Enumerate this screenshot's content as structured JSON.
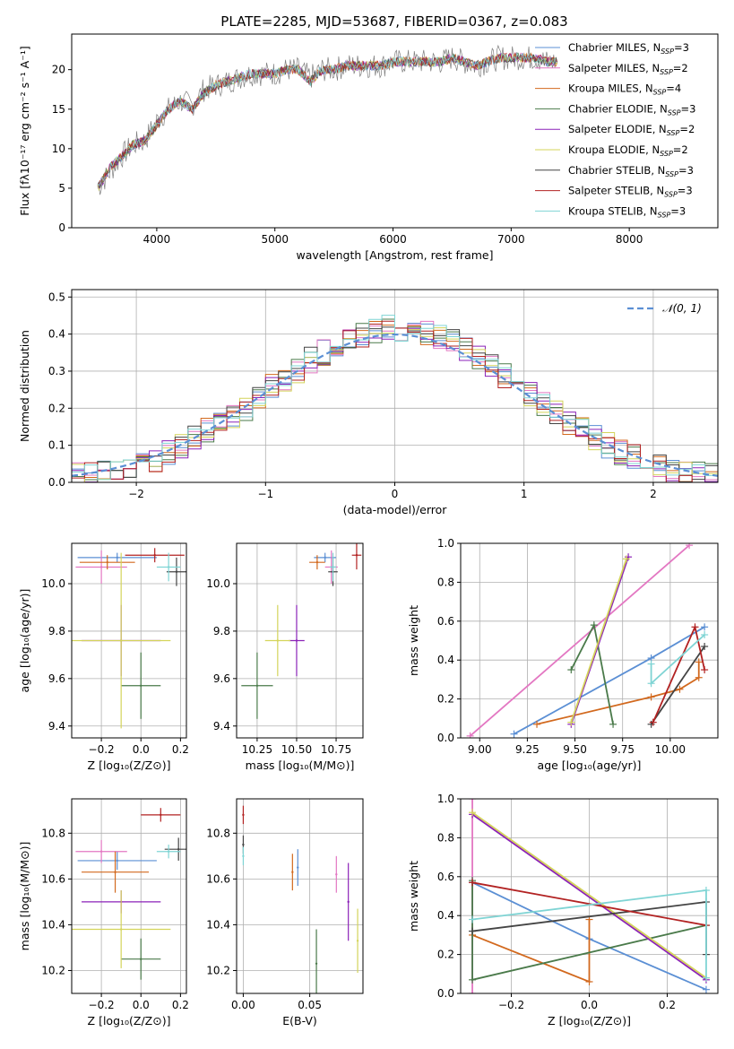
{
  "figure_title": "PLATE=2285, MJD=53687, FIBERID=0367, z=0.083",
  "colors": {
    "chabrier_miles": "#5b8fd4",
    "salpeter_miles": "#e377c2",
    "kroupa_miles": "#d2691e",
    "chabrier_elodie": "#4a7a4a",
    "salpeter_elodie": "#8b22b8",
    "kroupa_elodie": "#d4d45a",
    "chabrier_stelib": "#444444",
    "salpeter_stelib": "#b22222",
    "kroupa_stelib": "#7fd4d4",
    "data": "#7f7f7f",
    "normal": "#5b8fd4"
  },
  "chart_data": [
    {
      "type": "line",
      "id": "spectrum",
      "xlabel": "wavelength [Angstrom, rest frame]",
      "ylabel": "Flux [fλ10⁻¹⁷ erg cm⁻² s⁻¹ A⁻¹]",
      "xlim": [
        3280,
        8750
      ],
      "ylim": [
        0,
        24.5
      ],
      "xticks": [
        4000,
        5000,
        6000,
        7000,
        8000
      ],
      "yticks": [
        0,
        5,
        10,
        15,
        20
      ],
      "grid": false,
      "legend_position": "right",
      "x": [
        3500,
        3600,
        3700,
        3800,
        3900,
        4000,
        4100,
        4200,
        4300,
        4400,
        4500,
        4600,
        4700,
        4800,
        4900,
        5000,
        5100,
        5200,
        5300,
        5400,
        5500,
        5600,
        5700,
        5800,
        5900,
        6000,
        6100,
        6200,
        6300,
        6400,
        6500,
        6600,
        6700,
        6800,
        6900,
        7000,
        7100,
        7200,
        7300,
        7400
      ],
      "data_flux": [
        5,
        7,
        9,
        10.5,
        11,
        13.5,
        15,
        16,
        15.5,
        17.5,
        18,
        18.5,
        19,
        19.5,
        19.5,
        19.5,
        20,
        20,
        19,
        20,
        20,
        20.5,
        20.5,
        20.5,
        20.5,
        21,
        21,
        21,
        21,
        21,
        21.5,
        21,
        20.5,
        21,
        21.5,
        21.5,
        21.5,
        21.5,
        21,
        21
      ],
      "model_flux": [
        5,
        7.5,
        9,
        10.5,
        11,
        13,
        15,
        16,
        15,
        17,
        18,
        18.5,
        19,
        19.5,
        19.5,
        19.5,
        20,
        20,
        18.5,
        20,
        20,
        20.5,
        20.5,
        20.5,
        20.5,
        21,
        21,
        21,
        21,
        21,
        21.5,
        21,
        20.5,
        21,
        21.5,
        21.5,
        21.5,
        21.5,
        21,
        21
      ],
      "series": [
        {
          "name": "Chabrier MILES, N_SSP=3",
          "label_main": "Chabrier MILES, N",
          "label_sub": "SSP",
          "label_tail": "=3",
          "color_key": "chabrier_miles"
        },
        {
          "name": "Salpeter MILES, N_SSP=2",
          "label_main": "Salpeter MILES, N",
          "label_sub": "SSP",
          "label_tail": "=2",
          "color_key": "salpeter_miles"
        },
        {
          "name": "Kroupa MILES, N_SSP=4",
          "label_main": "Kroupa MILES, N",
          "label_sub": "SSP",
          "label_tail": "=4",
          "color_key": "kroupa_miles"
        },
        {
          "name": "Chabrier ELODIE, N_SSP=3",
          "label_main": "Chabrier ELODIE, N",
          "label_sub": "SSP",
          "label_tail": "=3",
          "color_key": "chabrier_elodie"
        },
        {
          "name": "Salpeter ELODIE, N_SSP=2",
          "label_main": "Salpeter ELODIE, N",
          "label_sub": "SSP",
          "label_tail": "=2",
          "color_key": "salpeter_elodie"
        },
        {
          "name": "Kroupa ELODIE, N_SSP=2",
          "label_main": "Kroupa ELODIE, N",
          "label_sub": "SSP",
          "label_tail": "=2",
          "color_key": "kroupa_elodie"
        },
        {
          "name": "Chabrier STELIB, N_SSP=3",
          "label_main": "Chabrier STELIB, N",
          "label_sub": "SSP",
          "label_tail": "=3",
          "color_key": "chabrier_stelib"
        },
        {
          "name": "Salpeter STELIB, N_SSP=3",
          "label_main": "Salpeter STELIB, N",
          "label_sub": "SSP",
          "label_tail": "=3",
          "color_key": "salpeter_stelib"
        },
        {
          "name": "Kroupa STELIB, N_SSP=3",
          "label_main": "Kroupa STELIB, N",
          "label_sub": "SSP",
          "label_tail": "=3",
          "color_key": "kroupa_stelib"
        }
      ]
    },
    {
      "type": "line",
      "id": "residuals",
      "xlabel": "(data-model)/error",
      "ylabel": "Normed distribution",
      "xlim": [
        -2.5,
        2.5
      ],
      "ylim": [
        0,
        0.52
      ],
      "xticks": [
        -2,
        -1,
        0,
        1,
        2
      ],
      "xticklabels": [
        "−2",
        "−1",
        "0",
        "1",
        "2"
      ],
      "yticks": [
        0.0,
        0.1,
        0.2,
        0.3,
        0.4,
        0.5
      ],
      "yticklabels": [
        "0.0",
        "0.1",
        "0.2",
        "0.3",
        "0.4",
        "0.5"
      ],
      "grid": true,
      "legend_position": "top-right",
      "legend_label": "𝒩(0, 1)",
      "bins": [
        -2.5,
        -2.4,
        -2.3,
        -2.2,
        -2.1,
        -2.0,
        -1.9,
        -1.8,
        -1.7,
        -1.6,
        -1.5,
        -1.4,
        -1.3,
        -1.2,
        -1.1,
        -1.0,
        -0.9,
        -0.8,
        -0.7,
        -0.6,
        -0.5,
        -0.4,
        -0.3,
        -0.2,
        -0.1,
        0.0,
        0.1,
        0.2,
        0.3,
        0.4,
        0.5,
        0.6,
        0.7,
        0.8,
        0.9,
        1.0,
        1.1,
        1.2,
        1.3,
        1.4,
        1.5,
        1.6,
        1.7,
        1.8,
        1.9,
        2.0,
        2.1,
        2.2,
        2.3,
        2.4
      ],
      "histogram": [
        0.02,
        0.02,
        0.03,
        0.03,
        0.04,
        0.05,
        0.06,
        0.08,
        0.1,
        0.12,
        0.14,
        0.16,
        0.18,
        0.2,
        0.23,
        0.26,
        0.28,
        0.3,
        0.33,
        0.35,
        0.37,
        0.39,
        0.4,
        0.41,
        0.42,
        0.41,
        0.4,
        0.4,
        0.39,
        0.38,
        0.36,
        0.34,
        0.31,
        0.29,
        0.26,
        0.24,
        0.21,
        0.19,
        0.16,
        0.14,
        0.12,
        0.1,
        0.08,
        0.07,
        0.05,
        0.04,
        0.03,
        0.03,
        0.02,
        0.02
      ],
      "gaussian": {
        "mean": 0,
        "sigma": 1
      }
    },
    {
      "type": "scatter",
      "id": "age_vs_Z",
      "xlabel": "Z [log₁₀(Z/Z⊙)]",
      "ylabel": "age  [log₁₀(age/yr)]",
      "xlim": [
        -0.35,
        0.23
      ],
      "ylim": [
        9.35,
        10.17
      ],
      "xticks": [
        -0.2,
        0.0,
        0.2
      ],
      "xticklabels": [
        "−0.2",
        "0.0",
        "0.2"
      ],
      "yticks": [
        9.4,
        9.6,
        9.8,
        10.0
      ],
      "yticklabels": [
        "9.4",
        "9.6",
        "9.8",
        "10.0"
      ],
      "grid": true,
      "points": [
        {
          "color_key": "chabrier_miles",
          "x": -0.12,
          "y": 10.11,
          "xerr": 0.2,
          "yerr": 0.02
        },
        {
          "color_key": "salpeter_miles",
          "x": -0.2,
          "y": 10.07,
          "xerr": 0.13,
          "yerr": 0.07
        },
        {
          "color_key": "kroupa_miles",
          "x": -0.17,
          "y": 10.09,
          "xerr": 0.14,
          "yerr": 0.03
        },
        {
          "color_key": "chabrier_elodie",
          "x": 0.0,
          "y": 9.57,
          "xerr": 0.1,
          "yerr": 0.14
        },
        {
          "color_key": "salpeter_elodie",
          "x": -0.1,
          "y": 9.76,
          "xerr": 0.2,
          "yerr": 0.15
        },
        {
          "color_key": "kroupa_elodie",
          "x": -0.1,
          "y": 9.76,
          "xerr": 0.25,
          "yerr": 0.37
        },
        {
          "color_key": "chabrier_stelib",
          "x": 0.18,
          "y": 10.05,
          "xerr": 0.05,
          "yerr": 0.06
        },
        {
          "color_key": "salpeter_stelib",
          "x": 0.07,
          "y": 10.12,
          "xerr": 0.15,
          "yerr": 0.03
        },
        {
          "color_key": "kroupa_stelib",
          "x": 0.14,
          "y": 10.07,
          "xerr": 0.06,
          "yerr": 0.06
        }
      ]
    },
    {
      "type": "scatter",
      "id": "age_vs_mass",
      "xlabel": "mass [log₁₀(M/M⊙)]",
      "ylabel": "",
      "xlim": [
        10.12,
        10.92
      ],
      "ylim": [
        9.35,
        10.17
      ],
      "xticks": [
        10.25,
        10.5,
        10.75
      ],
      "xticklabels": [
        "10.25",
        "10.50",
        "10.75"
      ],
      "yticks": [
        9.4,
        9.6,
        9.8,
        10.0
      ],
      "yticklabels": [
        "9.4",
        "9.6",
        "9.8",
        "10.0"
      ],
      "grid": true,
      "points": [
        {
          "color_key": "chabrier_miles",
          "x": 10.68,
          "y": 10.11,
          "xerr": 0.07,
          "yerr": 0.02
        },
        {
          "color_key": "salpeter_miles",
          "x": 10.72,
          "y": 10.07,
          "xerr": 0.04,
          "yerr": 0.07
        },
        {
          "color_key": "kroupa_miles",
          "x": 10.63,
          "y": 10.09,
          "xerr": 0.05,
          "yerr": 0.03
        },
        {
          "color_key": "chabrier_elodie",
          "x": 10.25,
          "y": 9.57,
          "xerr": 0.1,
          "yerr": 0.14
        },
        {
          "color_key": "salpeter_elodie",
          "x": 10.5,
          "y": 9.76,
          "xerr": 0.05,
          "yerr": 0.15
        },
        {
          "color_key": "kroupa_elodie",
          "x": 10.38,
          "y": 9.76,
          "xerr": 0.08,
          "yerr": 0.15
        },
        {
          "color_key": "chabrier_stelib",
          "x": 10.73,
          "y": 10.05,
          "xerr": 0.03,
          "yerr": 0.06
        },
        {
          "color_key": "salpeter_stelib",
          "x": 10.88,
          "y": 10.12,
          "xerr": 0.03,
          "yerr": 0.06
        },
        {
          "color_key": "kroupa_stelib",
          "x": 10.73,
          "y": 10.07,
          "xerr": 0.02,
          "yerr": 0.06
        }
      ]
    },
    {
      "type": "line",
      "id": "massweight_vs_age",
      "xlabel": "age  [log₁₀(age/yr)]",
      "ylabel": "mass weight",
      "xlim": [
        8.9,
        10.25
      ],
      "ylim": [
        0,
        1.0
      ],
      "xticks": [
        9.0,
        9.25,
        9.5,
        9.75,
        10.0
      ],
      "xticklabels": [
        "9.00",
        "9.25",
        "9.50",
        "9.75",
        "10.00"
      ],
      "yticks": [
        0.0,
        0.2,
        0.4,
        0.6,
        0.8,
        1.0
      ],
      "yticklabels": [
        "0.0",
        "0.2",
        "0.4",
        "0.6",
        "0.8",
        "1.0"
      ],
      "grid": true,
      "series": [
        {
          "color_key": "chabrier_miles",
          "x": [
            9.18,
            9.9,
            10.18
          ],
          "y": [
            0.02,
            0.41,
            0.57
          ]
        },
        {
          "color_key": "salpeter_miles",
          "x": [
            8.95,
            10.1
          ],
          "y": [
            0.01,
            0.99
          ]
        },
        {
          "color_key": "kroupa_miles",
          "x": [
            9.3,
            9.9,
            10.05,
            10.15,
            10.15
          ],
          "y": [
            0.07,
            0.21,
            0.25,
            0.31,
            0.39
          ]
        },
        {
          "color_key": "chabrier_elodie",
          "x": [
            9.48,
            9.6,
            9.7
          ],
          "y": [
            0.35,
            0.58,
            0.07
          ]
        },
        {
          "color_key": "salpeter_elodie",
          "x": [
            9.48,
            9.78
          ],
          "y": [
            0.07,
            0.93
          ]
        },
        {
          "color_key": "kroupa_elodie",
          "x": [
            9.48,
            9.77
          ],
          "y": [
            0.08,
            0.92
          ]
        },
        {
          "color_key": "chabrier_stelib",
          "x": [
            9.9,
            10.18
          ],
          "y": [
            0.07,
            0.47
          ]
        },
        {
          "color_key": "salpeter_stelib",
          "x": [
            9.91,
            10.13,
            10.18
          ],
          "y": [
            0.08,
            0.57,
            0.35
          ]
        },
        {
          "color_key": "kroupa_stelib",
          "x": [
            9.9,
            9.9,
            10.18
          ],
          "y": [
            0.38,
            0.28,
            0.53
          ]
        }
      ]
    },
    {
      "type": "scatter",
      "id": "mass_vs_Z",
      "xlabel": "Z [log₁₀(Z/Z⊙)]",
      "ylabel": "mass [log₁₀(M/M⊙)]",
      "xlim": [
        -0.35,
        0.23
      ],
      "ylim": [
        10.1,
        10.95
      ],
      "xticks": [
        -0.2,
        0.0,
        0.2
      ],
      "xticklabels": [
        "−0.2",
        "0.0",
        "0.2"
      ],
      "yticks": [
        10.2,
        10.4,
        10.6,
        10.8
      ],
      "yticklabels": [
        "10.2",
        "10.4",
        "10.6",
        "10.8"
      ],
      "grid": true,
      "points": [
        {
          "color_key": "chabrier_miles",
          "x": -0.12,
          "y": 10.68,
          "xerr": 0.2,
          "yerr": 0.04
        },
        {
          "color_key": "salpeter_miles",
          "x": -0.2,
          "y": 10.72,
          "xerr": 0.13,
          "yerr": 0.05
        },
        {
          "color_key": "kroupa_miles",
          "x": -0.13,
          "y": 10.63,
          "xerr": 0.17,
          "yerr": 0.09
        },
        {
          "color_key": "chabrier_elodie",
          "x": 0.0,
          "y": 10.25,
          "xerr": 0.1,
          "yerr": 0.09
        },
        {
          "color_key": "salpeter_elodie",
          "x": -0.1,
          "y": 10.5,
          "xerr": 0.2,
          "yerr": 0.05
        },
        {
          "color_key": "kroupa_elodie",
          "x": -0.1,
          "y": 10.38,
          "xerr": 0.25,
          "yerr": 0.17
        },
        {
          "color_key": "chabrier_stelib",
          "x": 0.19,
          "y": 10.73,
          "xerr": 0.07,
          "yerr": 0.05
        },
        {
          "color_key": "salpeter_stelib",
          "x": 0.1,
          "y": 10.88,
          "xerr": 0.1,
          "yerr": 0.03
        },
        {
          "color_key": "kroupa_stelib",
          "x": 0.14,
          "y": 10.72,
          "xerr": 0.06,
          "yerr": 0.03
        }
      ]
    },
    {
      "type": "scatter",
      "id": "mass_vs_ebv",
      "xlabel": "E(B-V)",
      "ylabel": "",
      "xlim": [
        -0.005,
        0.09
      ],
      "ylim": [
        10.1,
        10.95
      ],
      "xticks": [
        0.0,
        0.05
      ],
      "xticklabels": [
        "0.00",
        "0.05"
      ],
      "yticks": [
        10.2,
        10.4,
        10.6,
        10.8
      ],
      "yticklabels": [
        "10.2",
        "10.4",
        "10.6",
        "10.8"
      ],
      "grid": true,
      "points": [
        {
          "color_key": "chabrier_miles",
          "x": 0.041,
          "y": 10.65,
          "xerr": 0,
          "yerr": 0.08
        },
        {
          "color_key": "salpeter_miles",
          "x": 0.07,
          "y": 10.62,
          "xerr": 0,
          "yerr": 0.08
        },
        {
          "color_key": "kroupa_miles",
          "x": 0.037,
          "y": 10.63,
          "xerr": 0,
          "yerr": 0.08
        },
        {
          "color_key": "chabrier_elodie",
          "x": 0.055,
          "y": 10.23,
          "xerr": 0,
          "yerr": 0.15
        },
        {
          "color_key": "salpeter_elodie",
          "x": 0.079,
          "y": 10.5,
          "xerr": 0,
          "yerr": 0.17
        },
        {
          "color_key": "kroupa_elodie",
          "x": 0.086,
          "y": 10.33,
          "xerr": 0,
          "yerr": 0.14
        },
        {
          "color_key": "chabrier_stelib",
          "x": 0.0,
          "y": 10.75,
          "xerr": 0,
          "yerr": 0.04
        },
        {
          "color_key": "salpeter_stelib",
          "x": 0.0,
          "y": 10.88,
          "xerr": 0,
          "yerr": 0.04
        },
        {
          "color_key": "kroupa_stelib",
          "x": 0.0,
          "y": 10.7,
          "xerr": 0,
          "yerr": 0.04
        }
      ]
    },
    {
      "type": "line",
      "id": "massweight_vs_Z",
      "xlabel": "Z [log₁₀(Z/Z⊙)]",
      "ylabel": "mass weight",
      "xlim": [
        -0.33,
        0.33
      ],
      "ylim": [
        0,
        1.0
      ],
      "xticks": [
        -0.2,
        0.0,
        0.2
      ],
      "xticklabels": [
        "−0.2",
        "0.0",
        "0.2"
      ],
      "yticks": [
        0.0,
        0.2,
        0.4,
        0.6,
        0.8,
        1.0
      ],
      "yticklabels": [
        "0.0",
        "0.2",
        "0.4",
        "0.6",
        "0.8",
        "1.0"
      ],
      "grid": true,
      "series": [
        {
          "color_key": "chabrier_miles",
          "x": [
            -0.3,
            0.0,
            0.3
          ],
          "y": [
            0.57,
            0.28,
            0.02
          ]
        },
        {
          "color_key": "salpeter_miles",
          "x": [
            -0.3,
            -0.3
          ],
          "y": [
            0.0,
            1.0
          ]
        },
        {
          "color_key": "kroupa_miles",
          "x": [
            -0.3,
            0.0,
            0.0
          ],
          "y": [
            0.3,
            0.06,
            0.38
          ]
        },
        {
          "color_key": "chabrier_elodie",
          "x": [
            -0.3,
            -0.3,
            0.3
          ],
          "y": [
            0.58,
            0.07,
            0.35
          ]
        },
        {
          "color_key": "salpeter_elodie",
          "x": [
            -0.3,
            0.3
          ],
          "y": [
            0.92,
            0.07
          ]
        },
        {
          "color_key": "kroupa_elodie",
          "x": [
            -0.3,
            0.3
          ],
          "y": [
            0.93,
            0.08
          ]
        },
        {
          "color_key": "chabrier_stelib",
          "x": [
            -0.3,
            0.3,
            0.3
          ],
          "y": [
            0.32,
            0.47,
            0.2
          ]
        },
        {
          "color_key": "salpeter_stelib",
          "x": [
            -0.3,
            0.3
          ],
          "y": [
            0.57,
            0.35
          ]
        },
        {
          "color_key": "kroupa_stelib",
          "x": [
            -0.3,
            0.3,
            0.3
          ],
          "y": [
            0.38,
            0.53,
            0.08
          ]
        }
      ]
    }
  ]
}
